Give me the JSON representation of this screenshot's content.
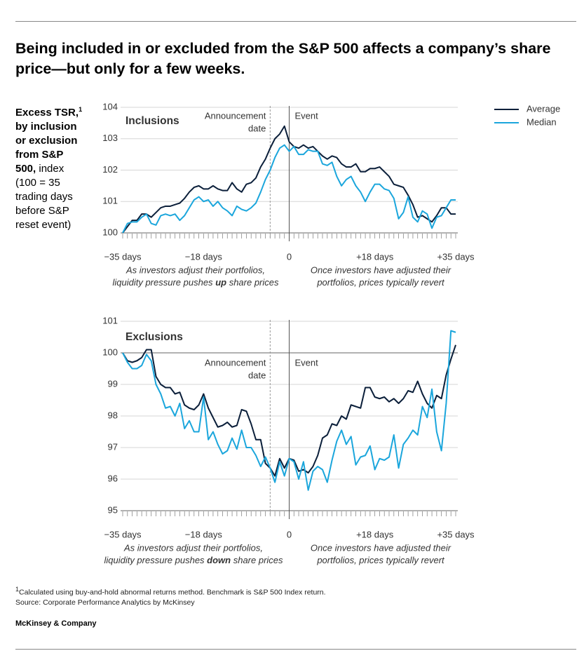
{
  "title": "Being included in or excluded from the S&P 500 affects a company’s share price—but only for a few weeks.",
  "side_label": {
    "bold": "Excess TSR,",
    "marker": "1",
    "bold2": " by inclusion or exclusion from S&P 500,",
    "rest": " index (100 = 35 trading days before S&P reset event)"
  },
  "footnote": {
    "marker": "1",
    "text": "Calculated using buy-and-hold abnormal returns method. Benchmark is S&P 500 Index return."
  },
  "source": "Source: Corporate Performance Analytics by McKinsey",
  "brand": "McKinsey & Company",
  "chart_data": [
    {
      "type": "line",
      "panel_label": "Inclusions",
      "legend": "upper right",
      "announcement_x": -4,
      "announcement_label": [
        "Announcement",
        "date"
      ],
      "event_x": 0,
      "event_label": "Event",
      "xlim": [
        -35,
        35
      ],
      "ylim": [
        100,
        104
      ],
      "yticks": [
        100,
        101,
        102,
        103,
        104
      ],
      "reference": 100,
      "grid": true,
      "xticks": [
        {
          "value": -35,
          "label": "−35 days"
        },
        {
          "value": -18,
          "label": "−18 days"
        },
        0,
        {
          "value": 18,
          "label": "+18 days"
        },
        {
          "value": 35,
          "label": "+35 days"
        }
      ],
      "captions": [
        {
          "line1": "As investors adjust their portfolios,",
          "before": "liquidity pressure pushes ",
          "bold": "up",
          "after": " share prices"
        },
        {
          "line1": "Once investors have adjusted their",
          "before": "portfolios, prices typically revert"
        }
      ],
      "x": [
        -35,
        -34,
        -33,
        -32,
        -31,
        -30,
        -29,
        -28,
        -27,
        -26,
        -25,
        -24,
        -23,
        -22,
        -21,
        -20,
        -19,
        -18,
        -17,
        -16,
        -15,
        -14,
        -13,
        -12,
        -11,
        -10,
        -9,
        -8,
        -7,
        -6,
        -5,
        -4,
        -3,
        -2,
        -1,
        0,
        1,
        2,
        3,
        4,
        5,
        6,
        7,
        8,
        9,
        10,
        11,
        12,
        13,
        14,
        15,
        16,
        17,
        18,
        19,
        20,
        21,
        22,
        23,
        24,
        25,
        26,
        27,
        28,
        29,
        30,
        31,
        32,
        33,
        34,
        35
      ],
      "series": [
        {
          "name": "Average",
          "color": "#0b1f3a",
          "values": [
            100.0,
            100.2,
            100.4,
            100.4,
            100.6,
            100.6,
            100.5,
            100.65,
            100.8,
            100.85,
            100.85,
            100.9,
            100.95,
            101.1,
            101.3,
            101.45,
            101.5,
            101.4,
            101.4,
            101.5,
            101.4,
            101.35,
            101.35,
            101.6,
            101.4,
            101.3,
            101.55,
            101.6,
            101.75,
            102.1,
            102.35,
            102.7,
            103.0,
            103.15,
            103.4,
            102.9,
            102.75,
            102.7,
            102.8,
            102.7,
            102.75,
            102.6,
            102.45,
            102.35,
            102.45,
            102.4,
            102.2,
            102.1,
            102.1,
            102.2,
            101.95,
            101.95,
            102.05,
            102.05,
            102.1,
            101.95,
            101.8,
            101.55,
            101.5,
            101.45,
            101.2,
            100.9,
            100.5,
            100.55,
            100.45,
            100.35,
            100.55,
            100.8,
            100.8,
            100.6,
            100.6
          ]
        },
        {
          "name": "Median",
          "color": "#1ba6dc",
          "values": [
            100.0,
            100.3,
            100.35,
            100.35,
            100.5,
            100.6,
            100.3,
            100.25,
            100.55,
            100.6,
            100.55,
            100.6,
            100.4,
            100.55,
            100.8,
            101.05,
            101.15,
            101.0,
            101.05,
            100.85,
            101.0,
            100.8,
            100.7,
            100.55,
            100.85,
            100.75,
            100.7,
            100.8,
            100.95,
            101.3,
            101.7,
            102.0,
            102.4,
            102.7,
            102.8,
            102.6,
            102.75,
            102.5,
            102.5,
            102.65,
            102.6,
            102.6,
            102.2,
            102.15,
            102.25,
            101.8,
            101.5,
            101.7,
            101.8,
            101.5,
            101.3,
            101.0,
            101.3,
            101.55,
            101.55,
            101.4,
            101.35,
            101.1,
            100.45,
            100.65,
            101.15,
            100.5,
            100.35,
            100.7,
            100.6,
            100.15,
            100.5,
            100.55,
            100.8,
            101.05,
            101.05
          ]
        }
      ]
    },
    {
      "type": "line",
      "panel_label": "Exclusions",
      "announcement_x": -4,
      "announcement_label": [
        "Announcement",
        "date"
      ],
      "event_x": 0,
      "event_label": "Event",
      "xlim": [
        -35,
        35
      ],
      "ylim": [
        95,
        101
      ],
      "yticks": [
        95,
        96,
        97,
        98,
        99,
        100,
        101
      ],
      "reference": 100,
      "grid": true,
      "xticks": [
        {
          "value": -35,
          "label": "−35 days"
        },
        {
          "value": -18,
          "label": "−18 days"
        },
        0,
        {
          "value": 18,
          "label": "+18 days"
        },
        {
          "value": 35,
          "label": "+35 days"
        }
      ],
      "captions": [
        {
          "line1": "As investors adjust their portfolios,",
          "before": "liquidity pressure pushes ",
          "bold": "down",
          "after": " share prices"
        },
        {
          "line1": "Once investors have adjusted their",
          "before": "portfolios, prices typically revert"
        }
      ],
      "x": [
        -35,
        -34,
        -33,
        -32,
        -31,
        -30,
        -29,
        -28,
        -27,
        -26,
        -25,
        -24,
        -23,
        -22,
        -21,
        -20,
        -19,
        -18,
        -17,
        -16,
        -15,
        -14,
        -13,
        -12,
        -11,
        -10,
        -9,
        -8,
        -7,
        -6,
        -5,
        -4,
        -3,
        -2,
        -1,
        0,
        1,
        2,
        3,
        4,
        5,
        6,
        7,
        8,
        9,
        10,
        11,
        12,
        13,
        14,
        15,
        16,
        17,
        18,
        19,
        20,
        21,
        22,
        23,
        24,
        25,
        26,
        27,
        28,
        29,
        30,
        31,
        32,
        33,
        34,
        35
      ],
      "series": [
        {
          "name": "Average",
          "color": "#0b1f3a",
          "values": [
            100.0,
            99.75,
            99.7,
            99.75,
            99.85,
            100.1,
            100.1,
            99.25,
            99.0,
            98.9,
            98.9,
            98.7,
            98.75,
            98.35,
            98.25,
            98.2,
            98.35,
            98.7,
            98.25,
            97.95,
            97.65,
            97.7,
            97.8,
            97.65,
            97.7,
            98.2,
            98.15,
            97.75,
            97.25,
            97.25,
            96.5,
            96.35,
            96.1,
            96.65,
            96.35,
            96.65,
            96.6,
            96.25,
            96.3,
            96.2,
            96.4,
            96.75,
            97.3,
            97.4,
            97.75,
            97.7,
            98.0,
            97.9,
            98.35,
            98.3,
            98.25,
            98.9,
            98.9,
            98.6,
            98.55,
            98.6,
            98.45,
            98.55,
            98.4,
            98.55,
            98.8,
            98.75,
            99.1,
            98.7,
            98.4,
            98.25,
            98.65,
            98.55,
            99.3,
            99.8,
            100.25
          ]
        },
        {
          "name": "Median",
          "color": "#1ba6dc",
          "values": [
            100.0,
            99.7,
            99.5,
            99.5,
            99.6,
            99.95,
            99.75,
            99.0,
            98.7,
            98.25,
            98.3,
            98.0,
            98.4,
            97.6,
            97.85,
            97.5,
            97.5,
            98.6,
            97.25,
            97.5,
            97.1,
            96.8,
            96.9,
            97.3,
            96.95,
            97.55,
            97.0,
            97.0,
            96.75,
            96.4,
            96.7,
            96.35,
            95.9,
            96.55,
            96.1,
            96.65,
            96.55,
            96.0,
            96.55,
            95.65,
            96.25,
            96.4,
            96.3,
            95.9,
            96.6,
            97.2,
            97.55,
            97.1,
            97.35,
            96.45,
            96.7,
            96.75,
            97.05,
            96.3,
            96.65,
            96.6,
            96.7,
            97.4,
            96.35,
            97.1,
            97.3,
            97.55,
            97.4,
            98.3,
            97.95,
            98.85,
            97.5,
            96.9,
            98.4,
            100.7,
            100.65
          ]
        }
      ]
    }
  ]
}
